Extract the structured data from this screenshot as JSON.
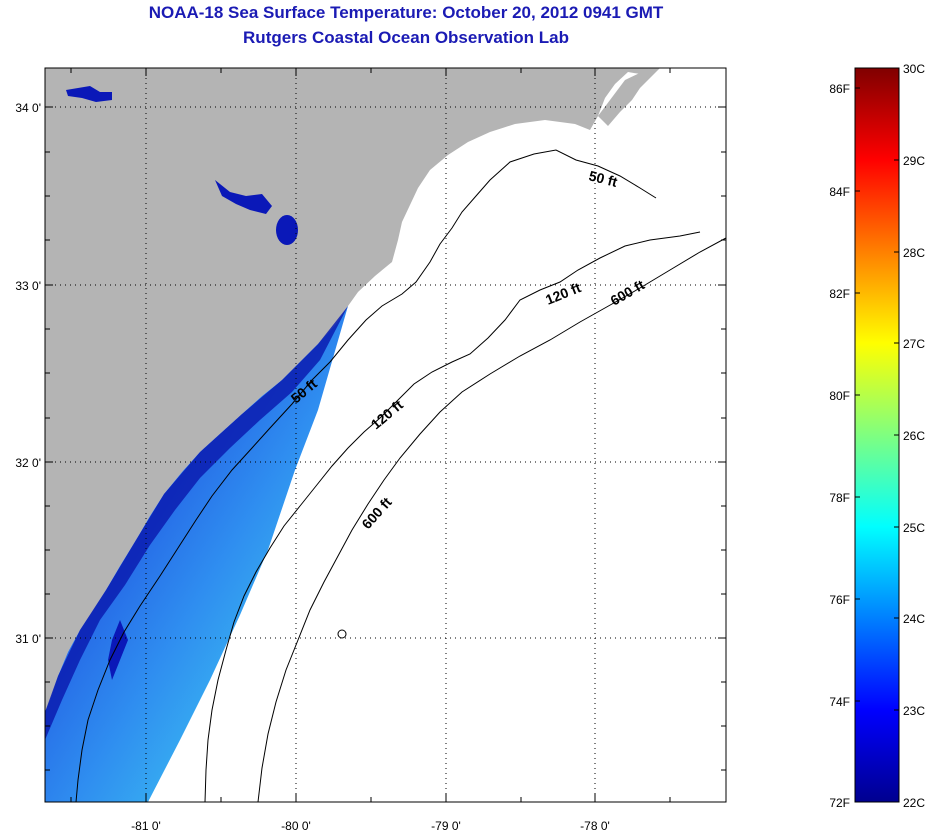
{
  "title": "NOAA-18 Sea Surface Temperature:  October 20, 2012 0941 GMT",
  "subtitle": "Rutgers Coastal Ocean Observation Lab",
  "map": {
    "lat_ticks": [
      "34 0'",
      "33 0'",
      "32 0'",
      "31 0'"
    ],
    "lon_ticks": [
      "-81 0'",
      "-80 0'",
      "-79 0'",
      "-78 0'"
    ],
    "lat_range": [
      30.1,
      34.2
    ],
    "lon_range": [
      -81.68,
      -77.18
    ],
    "contour_labels": {
      "c50a": "50 ft",
      "c50b": "50 ft",
      "c120a": "120 ft",
      "c120b": "120 ft",
      "c600a": "600 ft",
      "c600b": "600 ft"
    },
    "colors": {
      "land": "#b4b4b4",
      "ocean_nodata": "#ffffff",
      "title": "#1b1bb4"
    }
  },
  "colorbar": {
    "celsius_labels": [
      "30C",
      "29C",
      "28C",
      "27C",
      "26C",
      "25C",
      "24C",
      "23C",
      "22C"
    ],
    "fahrenheit_labels": [
      "86F",
      "84F",
      "82F",
      "80F",
      "78F",
      "76F",
      "74F",
      "72F"
    ],
    "celsius_range": [
      22,
      30
    ],
    "fahrenheit_range": [
      72,
      86
    ],
    "colormap": "jet"
  }
}
